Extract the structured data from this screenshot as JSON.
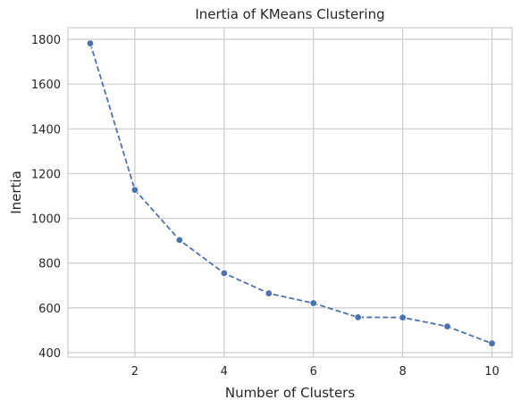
{
  "chart_data": {
    "type": "line",
    "title": "Inertia of KMeans Clustering",
    "xlabel": "Number of Clusters",
    "ylabel": "Inertia",
    "x": [
      1,
      2,
      3,
      4,
      5,
      6,
      7,
      8,
      9,
      10
    ],
    "series": [
      {
        "values": [
          1782,
          1127,
          903,
          755,
          665,
          621,
          558,
          557,
          517,
          441
        ],
        "color": "#4c72b0",
        "line_style": "dashed",
        "marker": "circle"
      }
    ],
    "xlim": [
      0.5,
      10.45
    ],
    "ylim": [
      380,
      1852
    ],
    "xticks": [
      2,
      4,
      6,
      8,
      10
    ],
    "yticks": [
      400,
      600,
      800,
      1000,
      1200,
      1400,
      1600,
      1800
    ],
    "grid": true,
    "legend": "none"
  }
}
